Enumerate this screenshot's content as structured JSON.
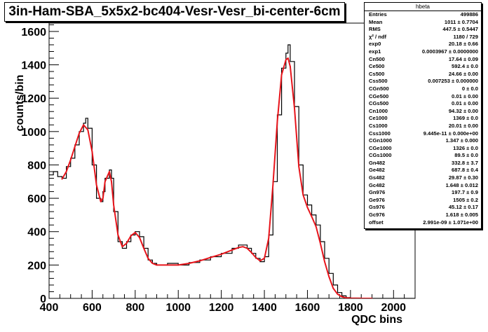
{
  "title": "3in-Ham-SBA_5x5x2-bc404-Vesr-Vesr_bi-center-6cm",
  "stats_box": {
    "name": "hbeta",
    "rows": [
      {
        "key": "Entries",
        "value": "499886"
      },
      {
        "key": "Mean",
        "value": "1011 ± 0.7704"
      },
      {
        "key": "RMS",
        "value": "447.5 ± 0.5447"
      },
      {
        "key": "χ² / ndf",
        "value": "1180 / 729"
      },
      {
        "key": "exp0",
        "value": "20.18 ± 0.66"
      },
      {
        "key": "exp1",
        "value": "0.0003967 ± 0.0000000"
      },
      {
        "key": "Cn500",
        "value": "17.64 ± 0.09"
      },
      {
        "key": "Ce500",
        "value": "592.4 ± 0.0"
      },
      {
        "key": "Cs500",
        "value": "24.66 ± 0.00"
      },
      {
        "key": "Css500",
        "value": "0.007253 ± 0.000000"
      },
      {
        "key": "CGn500",
        "value": "0 ± 0.0"
      },
      {
        "key": "CGe500",
        "value": "0.01 ± 0.00"
      },
      {
        "key": "CGs500",
        "value": "0.01 ± 0.00"
      },
      {
        "key": "Cn1000",
        "value": "94.32 ± 0.00"
      },
      {
        "key": "Ce1000",
        "value": "1369 ± 0.0"
      },
      {
        "key": "Cs1000",
        "value": "20.01 ± 0.00"
      },
      {
        "key": "Css1000",
        "value": "9.445e-11 ± 0.000e+00"
      },
      {
        "key": "CGn1000",
        "value": "1.347 ± 0.000"
      },
      {
        "key": "CGe1000",
        "value": "1326 ± 0.0"
      },
      {
        "key": "CGs1000",
        "value": "89.5 ± 0.0"
      },
      {
        "key": "Gn482",
        "value": "332.8 ± 3.7"
      },
      {
        "key": "Ge482",
        "value": "687.8 ± 0.4"
      },
      {
        "key": "Gs482",
        "value": "29.87 ± 0.30"
      },
      {
        "key": "Gc482",
        "value": "1.648 ± 0.012"
      },
      {
        "key": "Gn976",
        "value": "197.7 ± 0.9"
      },
      {
        "key": "Ge976",
        "value": "1505 ± 0.2"
      },
      {
        "key": "Gs976",
        "value": "45.12 ± 0.17"
      },
      {
        "key": "Gc976",
        "value": "1.618 ± 0.005"
      },
      {
        "key": "offset",
        "value": "2.991e-09 ± 1.071e+00"
      }
    ]
  },
  "colors": {
    "histogram": "#000000",
    "fit": "#e8141b",
    "axes": "#000000",
    "background": "#ffffff"
  },
  "chart_data": {
    "type": "line",
    "xlabel": "QDC bins",
    "ylabel": "counts/bin",
    "xlim": [
      400,
      2100
    ],
    "ylim": [
      0,
      1650
    ],
    "x_ticks": [
      400,
      600,
      800,
      1000,
      1200,
      1400,
      1600,
      1800,
      2000
    ],
    "y_ticks": [
      0,
      200,
      400,
      600,
      800,
      1000,
      1200,
      1400,
      1600
    ],
    "grid": false,
    "series": [
      {
        "style": "histogram",
        "x": [
          400,
          420,
          440,
          460,
          480,
          500,
          520,
          540,
          560,
          570,
          580,
          600,
          620,
          640,
          650,
          660,
          680,
          690,
          700,
          720,
          740,
          760,
          780,
          800,
          820,
          840,
          860,
          880,
          900,
          950,
          1000,
          1050,
          1100,
          1150,
          1200,
          1250,
          1280,
          1300,
          1320,
          1340,
          1360,
          1380,
          1400,
          1420,
          1440,
          1460,
          1480,
          1500,
          1510,
          1520,
          1540,
          1560,
          1580,
          1600,
          1620,
          1640,
          1660,
          1680,
          1700,
          1720,
          1740,
          1760,
          1780,
          1800,
          1850,
          1900
        ],
        "y": [
          740,
          760,
          730,
          720,
          790,
          840,
          920,
          1000,
          1050,
          1080,
          1020,
          800,
          600,
          580,
          640,
          720,
          770,
          720,
          520,
          340,
          300,
          340,
          380,
          400,
          370,
          300,
          230,
          210,
          200,
          210,
          200,
          215,
          230,
          250,
          270,
          300,
          320,
          320,
          300,
          270,
          240,
          220,
          250,
          380,
          700,
          1100,
          1380,
          1470,
          1520,
          1420,
          1150,
          800,
          620,
          560,
          500,
          440,
          340,
          240,
          150,
          80,
          35,
          15,
          5,
          2,
          0,
          0
        ]
      },
      {
        "style": "fit",
        "x": [
          460,
          480,
          500,
          520,
          540,
          560,
          580,
          600,
          620,
          640,
          650,
          660,
          680,
          690,
          700,
          720,
          740,
          760,
          780,
          800,
          820,
          840,
          860,
          880,
          900,
          950,
          1000,
          1050,
          1100,
          1150,
          1200,
          1250,
          1280,
          1300,
          1320,
          1340,
          1360,
          1380,
          1400,
          1420,
          1440,
          1460,
          1480,
          1500,
          1510,
          1520,
          1540,
          1560,
          1580,
          1600,
          1620,
          1640,
          1660,
          1680,
          1700,
          1720,
          1740,
          1760,
          1780,
          1800,
          1850,
          1900
        ],
        "y": [
          715,
          760,
          830,
          910,
          990,
          1040,
          1010,
          880,
          680,
          580,
          600,
          700,
          760,
          700,
          560,
          380,
          310,
          330,
          375,
          395,
          365,
          300,
          240,
          210,
          200,
          200,
          200,
          210,
          225,
          245,
          265,
          290,
          305,
          310,
          300,
          275,
          245,
          225,
          240,
          360,
          680,
          1060,
          1340,
          1430,
          1440,
          1390,
          1140,
          790,
          620,
          545,
          490,
          430,
          330,
          220,
          130,
          60,
          25,
          10,
          3,
          1,
          0,
          0
        ]
      }
    ]
  }
}
